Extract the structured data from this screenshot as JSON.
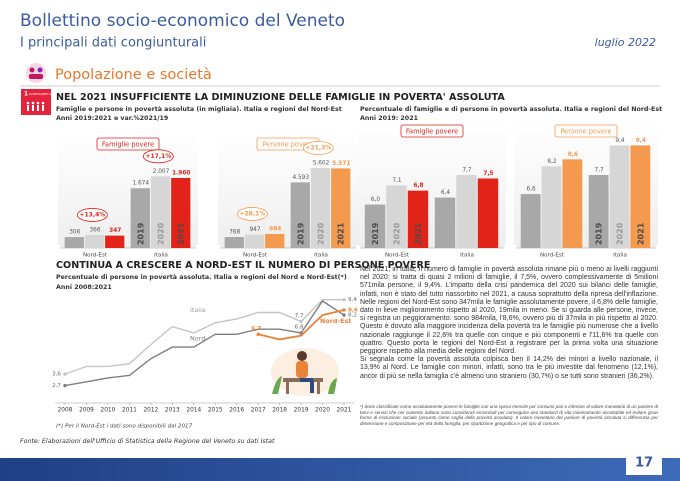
{
  "header": {
    "title": "Bollettino socio-economico del Veneto",
    "subtitle": "I principali dati congiunturali",
    "date": "luglio 2022"
  },
  "section": "Popolazione e società",
  "sdg": {
    "number": "1",
    "label": "SCONFIGGERE LA POVERTÀ"
  },
  "heading_1": "NEL 2021 INSUFFICIENTE LA DIMINUZIONE DELLE FAMIGLIE IN POVERTA' ASSOLUTA",
  "figure_1": {
    "title": "Famiglie e persone in povertà assoluta (in migliaia). Italia e regioni del Nord-Est",
    "subtitle": "Anni 2019:2021 e var.%2021/19"
  },
  "figure_2": {
    "title": "Percentuale di famiglie e di persone in povertà assoluta. Italia e regioni del Nord-Est",
    "subtitle": "Anni 2019: 2021"
  },
  "heading_2": "CONTINUA A CRESCERE A NORD-EST IL NUMERO DI PERSONE POVERE",
  "figure_3": {
    "title": "Percentuale di persone in povertà assoluta. Italia e regioni del Nord e Nord-Est(*)",
    "subtitle": "Anni 2008:2021",
    "note": "(*) Per il Nord-Est i dati sono disponibili dal 2017"
  },
  "chart_data": [
    {
      "type": "bar",
      "title": "Famiglie povere",
      "categories": [
        "Nord-Est",
        "Italia"
      ],
      "ylim": [
        0,
        2800
      ],
      "series": [
        {
          "name": "2019",
          "color": "#a8a8a8",
          "values": [
            306,
            1674
          ],
          "value_labels": [
            "306",
            "1.674"
          ]
        },
        {
          "name": "2020",
          "color": "#d6d6d6",
          "values": [
            366,
            2007
          ],
          "value_labels": [
            "366",
            "2.007"
          ]
        },
        {
          "name": "2021",
          "color": "#e2231a",
          "values": [
            347,
            1960
          ],
          "value_labels": [
            "347",
            "1.960"
          ]
        }
      ],
      "annotations": [
        "+13,4%",
        "+17,1%"
      ]
    },
    {
      "type": "bar",
      "title": "Persone povere",
      "categories": [
        "Nord-Est",
        "Italia"
      ],
      "ylim": [
        0,
        7000
      ],
      "series": [
        {
          "name": "2019",
          "color": "#a8a8a8",
          "values": [
            768,
            4593
          ],
          "value_labels": [
            "768",
            "4.593"
          ]
        },
        {
          "name": "2020",
          "color": "#d6d6d6",
          "values": [
            947,
            5602
          ],
          "value_labels": [
            "947",
            "5.602"
          ]
        },
        {
          "name": "2021",
          "color": "#f39a4e",
          "values": [
            984,
            5571
          ],
          "value_labels": [
            "984",
            "5.571"
          ]
        }
      ],
      "annotations": [
        "+28,1%",
        "+21,3%"
      ]
    },
    {
      "type": "bar",
      "title": "Famiglie povere",
      "categories": [
        "Nord-Est",
        "Italia"
      ],
      "ylim": [
        3.5,
        10
      ],
      "series": [
        {
          "name": "2019",
          "color": "#a8a8a8",
          "values": [
            6.0,
            6.4
          ],
          "value_labels": [
            "6,0",
            "6,4"
          ]
        },
        {
          "name": "2020",
          "color": "#d6d6d6",
          "values": [
            7.1,
            7.7
          ],
          "value_labels": [
            "7,1",
            "7,7"
          ]
        },
        {
          "name": "2021",
          "color": "#e2231a",
          "values": [
            6.8,
            7.5
          ],
          "value_labels": [
            "6,8",
            "7,5"
          ]
        }
      ]
    },
    {
      "type": "bar",
      "title": "Persone povere",
      "categories": [
        "Nord-Est",
        "Italia"
      ],
      "ylim": [
        3.5,
        10
      ],
      "series": [
        {
          "name": "2019",
          "color": "#a8a8a8",
          "values": [
            6.6,
            7.7
          ],
          "value_labels": [
            "6,6",
            "7,7"
          ]
        },
        {
          "name": "2020",
          "color": "#d6d6d6",
          "values": [
            8.2,
            9.4
          ],
          "value_labels": [
            "8,2",
            "9,4"
          ]
        },
        {
          "name": "2021",
          "color": "#f39a4e",
          "values": [
            8.6,
            9.4
          ],
          "value_labels": [
            "8,6",
            "9,4"
          ]
        }
      ]
    },
    {
      "type": "line",
      "x": [
        2008,
        2009,
        2010,
        2011,
        2012,
        2013,
        2014,
        2015,
        2016,
        2017,
        2018,
        2019,
        2020,
        2021
      ],
      "xlim": [
        2008,
        2021
      ],
      "ylim": [
        1.5,
        10
      ],
      "series": [
        {
          "name": "Italia",
          "color": "#c4c4c4",
          "values": [
            3.6,
            4.2,
            4.2,
            4.4,
            5.9,
            7.3,
            6.8,
            7.6,
            7.9,
            8.4,
            8.4,
            7.7,
            9.4,
            9.4
          ],
          "value_labels": [
            "3,6",
            null,
            null,
            null,
            null,
            null,
            null,
            null,
            null,
            null,
            null,
            "7,7",
            null,
            "9,4"
          ]
        },
        {
          "name": "Nord",
          "color": "#7f7f7f",
          "values": [
            2.7,
            3.0,
            3.3,
            3.5,
            4.8,
            5.7,
            5.7,
            6.7,
            6.7,
            7.1,
            7.1,
            6.8,
            9.3,
            8.2
          ],
          "value_labels": [
            "2,7",
            null,
            null,
            null,
            null,
            null,
            null,
            null,
            null,
            null,
            null,
            "6,8",
            null,
            "8,2"
          ]
        },
        {
          "name": "Nord-Est",
          "color": "#e8843a",
          "values": [
            null,
            null,
            null,
            null,
            null,
            null,
            null,
            null,
            null,
            6.7,
            6.3,
            6.6,
            8.2,
            8.6
          ],
          "value_labels": [
            null,
            null,
            null,
            null,
            null,
            null,
            null,
            null,
            null,
            "6,7",
            null,
            null,
            null,
            "8,6"
          ]
        }
      ]
    }
  ],
  "text": {
    "paragraphs": [
      "Nel 2021, in Italia, il numero di famiglie in povertà assoluta rimane più o meno ai livelli raggiunti nel 2020: si tratta di quasi 2 milioni di famiglie, il 7,5%, ovvero complessivamente di 5milioni 571mila persone, il 9,4%. L'impatto della crisi pandemica del 2020 sui bilanci delle famiglie, infatti, non è stato del tutto riassorbito nel 2021, a causa soprattutto della ripresa dell'inflazione. Nelle regioni del Nord-Est sono 347mila le famiglie assolutamente povere, il 6,8% delle famiglie, dato in lieve miglioramento rispetto al 2020, 19mila in meno. Se si guarda alle persone, invece, si registra un peggioramento: sono 984mila, l'8,6%, ovvero più di 37mila in più rispetto al 2020. Questo è dovuto alla maggiore incidenza della povertà tra le famiglie più numerose che a livello nazionale raggiunge il 22,6% tra quelle con cinque e più componenti e l'11,6% tra quelle con quattro. Questo porta le regioni del Nord-Est a registrare per la prima volta una situazione peggiore rispetto alla media delle regioni del Nord.",
      "Si segnala come la povertà assoluta colpisca ben il 14,2% dei minori a livello nazionale, il 13,9% al Nord. Le famiglie con minori, infatti, sono tra le più investite dal fenomeno (12,1%), ancor di più se nella famiglia c'è almeno uno straniero (30,7%) o se tutti sono stranieri (36,2%)."
    ],
    "footnote": "¹) Sono classificate come assolutamente povere le famiglie con una spesa mensile per consumi pari o inferiore al valore monetario di un paniere di beni e servizi che nel contesto italiano sono considerati essenziali per conseguire uno standard di vita minimamente accettabile ed evitare gravi forme di esclusione sociale (assunto come soglia della povertà assoluta). Il valore monetario del paniere di povertà assoluta si differenzia per dimensione e composizione per età della famiglia, per ripartizione geografica e per tipo di comune."
  },
  "source": "Fonte: Elaborazioni dell'Ufficio di Statistica della Regione del Veneto su dati Istat",
  "page_number": "17"
}
